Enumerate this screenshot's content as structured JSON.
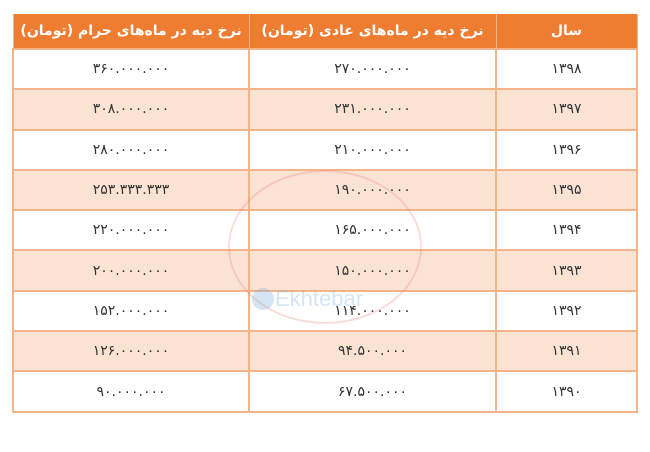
{
  "table": {
    "headers": [
      "سال",
      "نرخ دیه در ماه‌های عادی (تومان)",
      "نرخ دیه در ماه‌های حرام (تومان)"
    ],
    "rows": [
      [
        "۱۳۹۸",
        "۲۷۰.۰۰۰.۰۰۰",
        "۳۶۰.۰۰۰.۰۰۰"
      ],
      [
        "۱۳۹۷",
        "۲۳۱.۰۰۰.۰۰۰",
        "۳۰۸.۰۰۰.۰۰۰"
      ],
      [
        "۱۳۹۶",
        "۲۱۰.۰۰۰.۰۰۰",
        "۲۸۰.۰۰۰.۰۰۰"
      ],
      [
        "۱۳۹۵",
        "۱۹۰.۰۰۰.۰۰۰",
        "۲۵۳.۳۳۳.۳۳۳"
      ],
      [
        "۱۳۹۴",
        "۱۶۵.۰۰۰.۰۰۰",
        "۲۲۰.۰۰۰.۰۰۰"
      ],
      [
        "۱۳۹۳",
        "۱۵۰.۰۰۰.۰۰۰",
        "۲۰۰.۰۰۰.۰۰۰"
      ],
      [
        "۱۳۹۲",
        "۱۱۴.۰۰۰.۰۰۰",
        "۱۵۲.۰۰۰.۰۰۰"
      ],
      [
        "۱۳۹۱",
        "۹۴.۵۰۰.۰۰۰",
        "۱۲۶.۰۰۰.۰۰۰"
      ],
      [
        "۱۳۹۰",
        "۶۷.۵۰۰.۰۰۰",
        "۹۰.۰۰۰.۰۰۰"
      ]
    ]
  },
  "watermark": {
    "text": "Ekhtebar"
  },
  "colors": {
    "header": "#ef7d31",
    "alt_row": "#fbe3d4",
    "border": "#f3b48a"
  }
}
